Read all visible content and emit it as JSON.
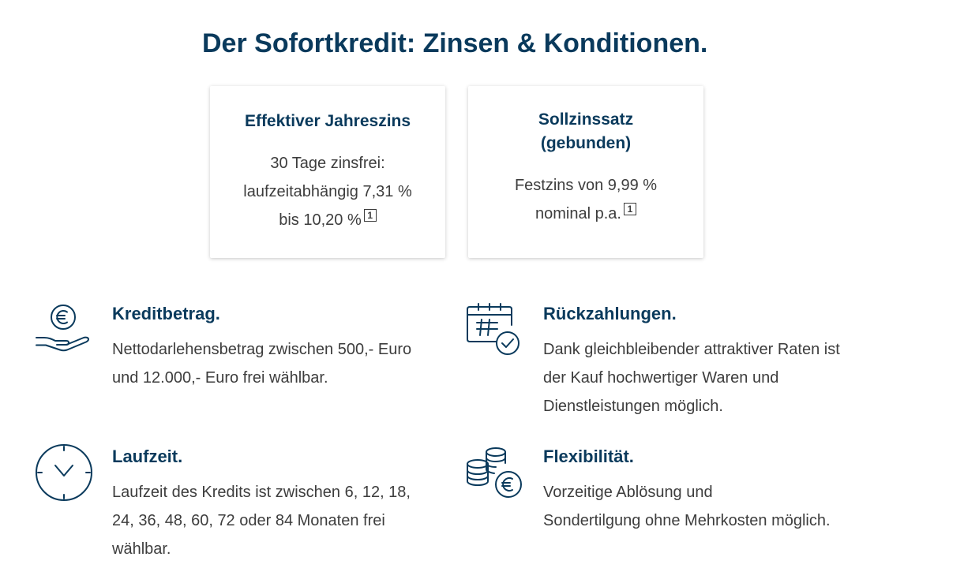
{
  "page": {
    "title": "Der Sofortkredit: Zinsen & Konditionen."
  },
  "cards": [
    {
      "title": "Effektiver Jahreszins",
      "lines": [
        "30 Tage zinsfrei:",
        "laufzeitabhängig 7,31 %",
        "bis 10,20 %"
      ],
      "footnote": "1"
    },
    {
      "title_lines": [
        "Sollzinssatz",
        "(gebunden)"
      ],
      "lines": [
        "Festzins von 9,99 %",
        "nominal p.a."
      ],
      "footnote": "1"
    }
  ],
  "features": [
    {
      "icon": "hand-euro-icon",
      "title": "Kreditbetrag.",
      "lines": [
        "Nettodarlehensbetrag zwischen 500,- Euro",
        "und 12.000,- Euro frei wählbar."
      ]
    },
    {
      "icon": "calendar-check-icon",
      "title": "Rückzahlungen.",
      "lines": [
        "Dank gleichbleibender attraktiver Raten ist",
        "der Kauf hochwertiger Waren und",
        "Dienstleistungen möglich."
      ]
    },
    {
      "icon": "clock-icon",
      "title": "Laufzeit.",
      "lines": [
        "Laufzeit des Kredits ist zwischen 6, 12, 18,",
        "24, 36, 48, 60, 72 oder 84 Monaten frei",
        "wählbar."
      ]
    },
    {
      "icon": "coins-euro-icon",
      "title": "Flexibilität.",
      "lines": [
        "Vorzeitige Ablösung und",
        "Sondertilgung ohne Mehrkosten möglich."
      ]
    }
  ],
  "colors": {
    "heading": "#0a3a5c",
    "text": "#3d3d3d",
    "icon": "#0a3a5c"
  }
}
